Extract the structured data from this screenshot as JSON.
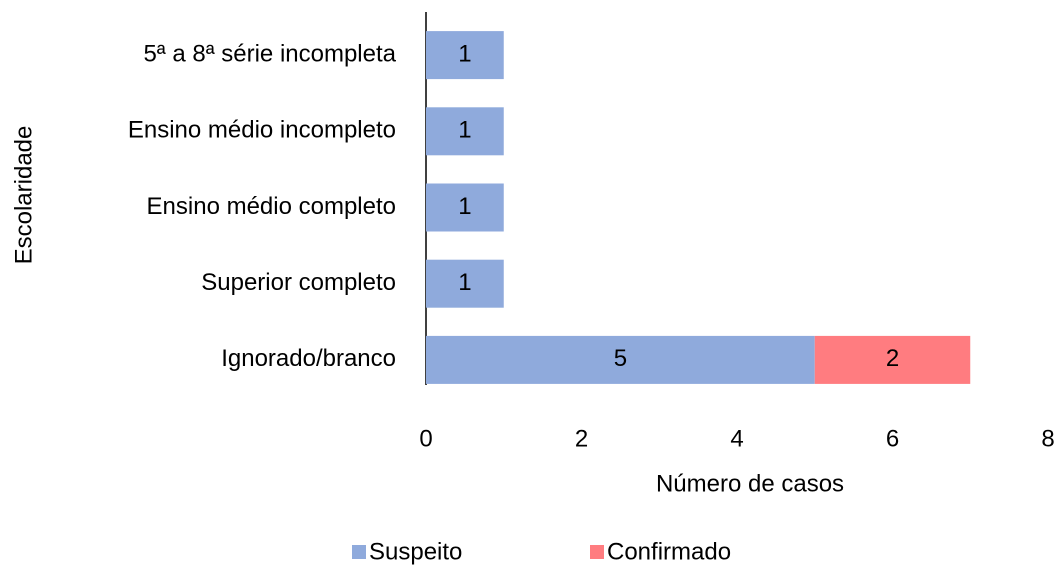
{
  "chart_data": {
    "type": "stacked_bar_horizontal",
    "x_label": "Número de casos",
    "y_label": "Escolaridade",
    "categories": [
      "5ª a 8ª série incompleta",
      "Ensino médio incompleto",
      "Ensino médio completo",
      "Superior completo",
      "Ignorado/branco"
    ],
    "series": [
      {
        "name": "Suspeito",
        "color": "#8faadc",
        "values": [
          1,
          1,
          1,
          1,
          5
        ]
      },
      {
        "name": "Confirmado",
        "color": "#ff7c80",
        "values": [
          null,
          null,
          null,
          null,
          2
        ]
      }
    ],
    "xlim": [
      0,
      8
    ],
    "xticks": [
      0,
      2,
      4,
      6,
      8
    ],
    "grid": false,
    "legend": "bottom"
  }
}
